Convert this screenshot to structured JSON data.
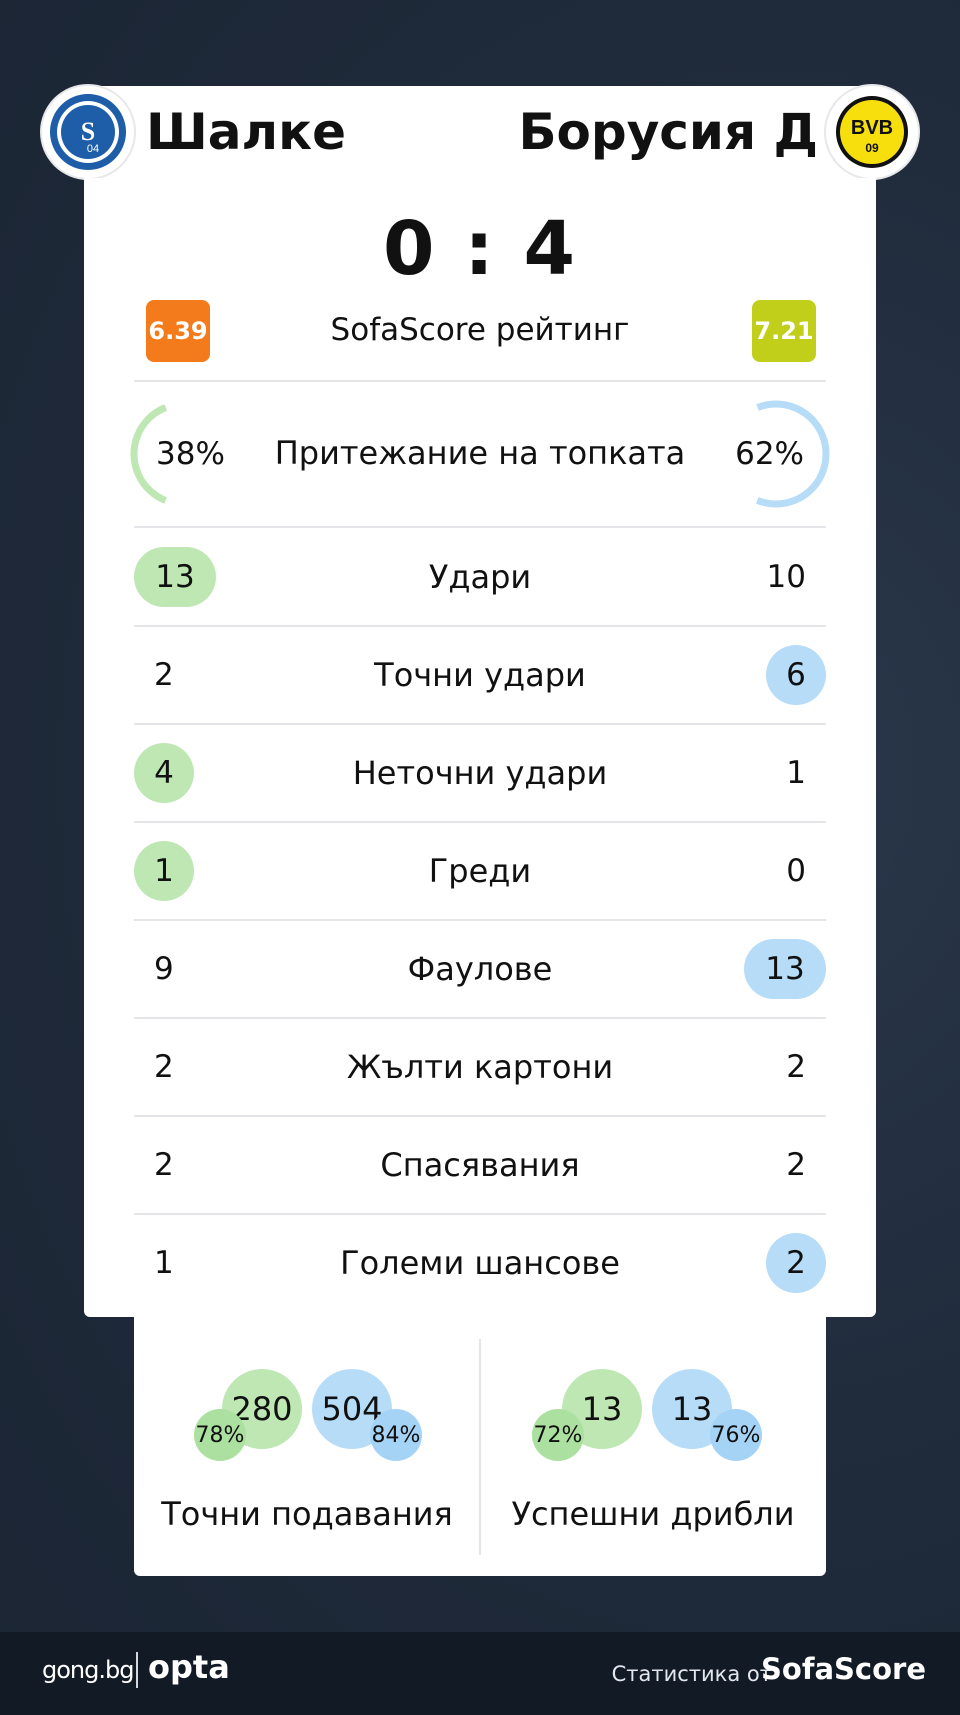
{
  "header": {
    "home_team": "Шалке",
    "away_team": "Борусия Д",
    "home_crest_text": "S04",
    "away_crest_text": "BVB 09"
  },
  "score": "0 : 4",
  "rating": {
    "label": "SofaScore рейтинг",
    "home": "6.39",
    "away": "7.21",
    "home_color": "#f47b1c",
    "away_color": "#c1cf1a"
  },
  "possession": {
    "label": "Притежание на топката",
    "home": "38%",
    "away": "62%",
    "home_fraction": 0.38,
    "away_fraction": 0.62
  },
  "stats": [
    {
      "label": "Удари",
      "home": "13",
      "away": "10",
      "highlight": "home"
    },
    {
      "label": "Точни удари",
      "home": "2",
      "away": "6",
      "highlight": "away"
    },
    {
      "label": "Неточни удари",
      "home": "4",
      "away": "1",
      "highlight": "home"
    },
    {
      "label": "Греди",
      "home": "1",
      "away": "0",
      "highlight": "home"
    },
    {
      "label": "Фаулове",
      "home": "9",
      "away": "13",
      "highlight": "away"
    },
    {
      "label": "Жълти картони",
      "home": "2",
      "away": "2",
      "highlight": "none"
    },
    {
      "label": "Спасявания",
      "home": "2",
      "away": "2",
      "highlight": "none"
    },
    {
      "label": "Големи шансове",
      "home": "1",
      "away": "2",
      "highlight": "away"
    }
  ],
  "passes": {
    "label": "Точни подавания",
    "home": "280",
    "home_pct": "78%",
    "away": "504",
    "away_pct": "84%"
  },
  "dribbles": {
    "label": "Успешни дрибли",
    "home": "13",
    "home_pct": "72%",
    "away": "13",
    "away_pct": "76%"
  },
  "colors": {
    "home_highlight": "#bfe7b4",
    "away_highlight": "#b6dcf8"
  },
  "footer": {
    "site": "gong.bg",
    "partner": "opta",
    "provider_label": "Статистика от",
    "provider": "SofaScore"
  }
}
